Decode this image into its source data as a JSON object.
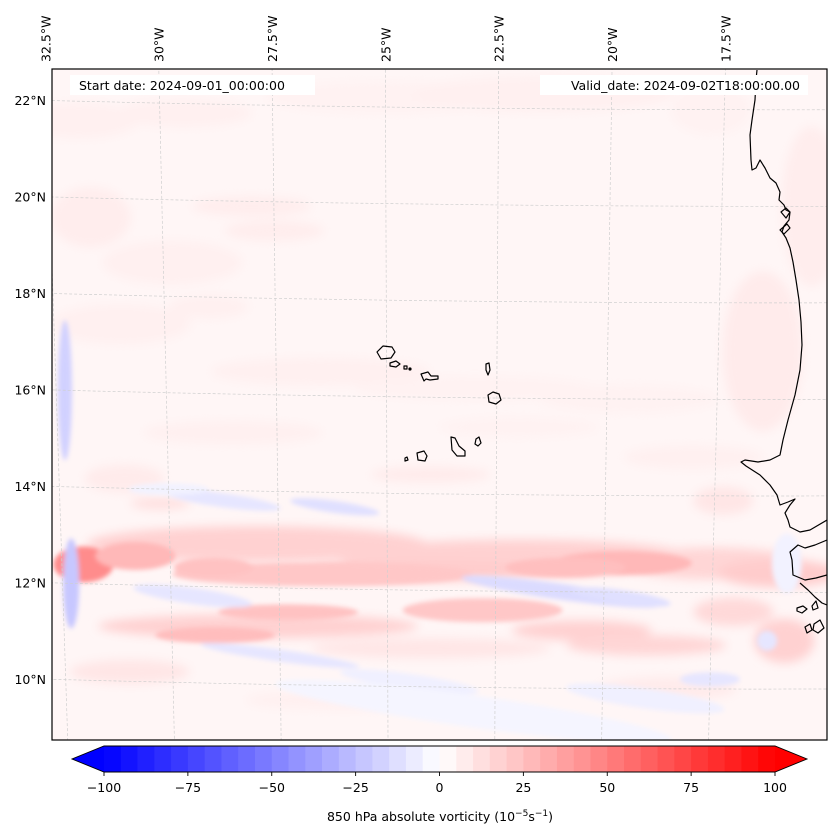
{
  "figure": {
    "type": "filled-contour-map",
    "variable_label": "850 hPa absolute vorticity",
    "units_label": "(10",
    "units_exp1": "−5",
    "units_mid": "s",
    "units_exp2": "−1",
    "units_close": ")"
  },
  "annotations": {
    "start_date": "Start date: 2024-09-01_00:00:00",
    "valid_date": "Valid_date: 2024-09-02T18:00:00.00"
  },
  "map": {
    "extent": {
      "lon_min": -32.6,
      "lon_max": -15.0,
      "lat_min": 8.9,
      "lat_max": 22.8
    },
    "lon_labels": [
      "32.5°W",
      "30°W",
      "27.5°W",
      "25°W",
      "22.5°W",
      "20°W",
      "17.5°W"
    ],
    "lon_values": [
      -32.5,
      -30,
      -27.5,
      -25,
      -22.5,
      -20,
      -17.5
    ],
    "lat_labels": [
      "22°N",
      "20°N",
      "18°N",
      "16°N",
      "14°N",
      "12°N",
      "10°N"
    ],
    "lat_values": [
      22,
      20,
      18,
      16,
      14,
      12,
      10
    ],
    "gridlines": "dashed light gray",
    "features": [
      "Cape Verde Islands",
      "West African coastline (Mauritania, Senegal, Gambia, Guinea-Bissau)"
    ]
  },
  "chart_data": {
    "type": "heatmap",
    "title": "",
    "colormap": "bwr",
    "colorbar": {
      "orientation": "horizontal",
      "placement": "bottom",
      "vmin": -100,
      "vmax": 100,
      "levels_step": 5,
      "extend": "both",
      "ticks": [
        -100,
        -75,
        -50,
        -25,
        0,
        25,
        50,
        75,
        100
      ],
      "tick_labels": [
        "−100",
        "−75",
        "−50",
        "−25",
        "0",
        "25",
        "50",
        "75",
        "100"
      ],
      "label": "850 hPa absolute vorticity (10⁻⁵s⁻¹)",
      "color_min": "#0000ff",
      "color_mid": "#ffffff",
      "color_max": "#ff0000"
    },
    "features_described": [
      {
        "name": "positive vorticity band",
        "lat_center": 12.5,
        "lon_range": [
          -32.3,
          -15.5
        ],
        "peak_value": 35
      },
      {
        "name": "positive vorticity maximum",
        "lat": 12.4,
        "lon": -32.0,
        "value": 45
      },
      {
        "name": "positive vorticity band",
        "lat_center": 11.3,
        "lon_range": [
          -31.5,
          -23.0
        ],
        "peak_value": 25
      },
      {
        "name": "negative vorticity streak",
        "lat": 11.9,
        "lon_range": [
          -22.5,
          -19.5
        ],
        "value": -15
      },
      {
        "name": "negative vorticity filament",
        "lat_range": [
          11.5,
          17.0
        ],
        "lon": -32.3,
        "value": -20
      },
      {
        "name": "negative vorticity streak",
        "lat": 13.6,
        "lon_range": [
          -28.0,
          -26.0
        ],
        "value": -10
      },
      {
        "name": "weak positive background",
        "lat_range": [
          14,
          22.8
        ],
        "value": 5
      }
    ]
  }
}
